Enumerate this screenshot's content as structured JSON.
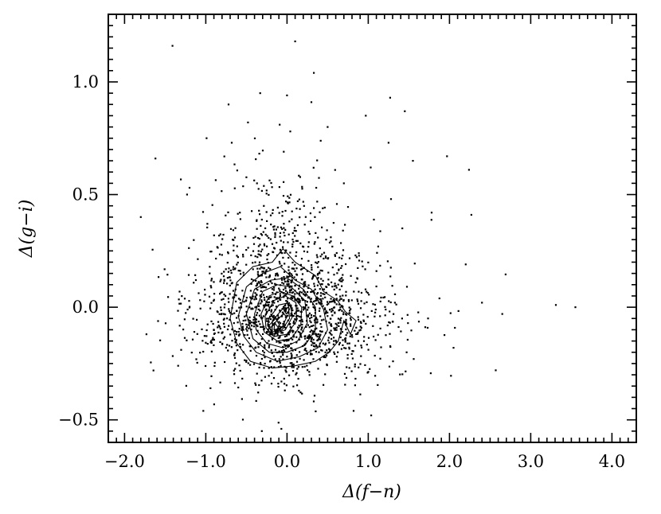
{
  "chart_data": {
    "type": "scatter",
    "title": "",
    "xlabel": "Δ(f−n)",
    "ylabel": "Δ(g−i)",
    "xlim": [
      -2.2,
      4.3
    ],
    "ylim": [
      -0.6,
      1.3
    ],
    "grid": false,
    "xticks": [
      {
        "value": -2.0,
        "label": "−2.0"
      },
      {
        "value": -1.0,
        "label": "−1.0"
      },
      {
        "value": 0.0,
        "label": "0.0"
      },
      {
        "value": 1.0,
        "label": "1.0"
      },
      {
        "value": 2.0,
        "label": "2.0"
      },
      {
        "value": 3.0,
        "label": "3.0"
      },
      {
        "value": 4.0,
        "label": "4.0"
      }
    ],
    "yticks": [
      {
        "value": -0.5,
        "label": "−0.5"
      },
      {
        "value": 0.0,
        "label": "0.0"
      },
      {
        "value": 0.5,
        "label": "0.5"
      },
      {
        "value": 1.0,
        "label": "1.0"
      }
    ],
    "points": [
      [
        -1.41,
        1.16
      ],
      [
        0.1,
        1.18
      ],
      [
        0.33,
        1.04
      ],
      [
        -0.33,
        0.95
      ],
      [
        0.0,
        0.94
      ],
      [
        -0.72,
        0.9
      ],
      [
        0.3,
        0.91
      ],
      [
        1.27,
        0.93
      ],
      [
        0.97,
        0.85
      ],
      [
        1.45,
        0.87
      ],
      [
        -0.48,
        0.82
      ],
      [
        -0.09,
        0.81
      ],
      [
        -1.62,
        0.66
      ],
      [
        -0.99,
        0.75
      ],
      [
        0.5,
        0.8
      ],
      [
        1.25,
        0.73
      ],
      [
        1.55,
        0.65
      ],
      [
        -0.68,
        0.73
      ],
      [
        1.97,
        0.67
      ],
      [
        1.03,
        0.62
      ],
      [
        2.24,
        0.61
      ],
      [
        -1.2,
        0.53
      ],
      [
        -1.8,
        0.4
      ],
      [
        2.27,
        0.41
      ],
      [
        1.78,
        0.42
      ],
      [
        -0.98,
        0.37
      ],
      [
        0.33,
        0.44
      ],
      [
        -0.37,
        0.55
      ],
      [
        0.7,
        0.55
      ],
      [
        -1.23,
        0.5
      ],
      [
        1.28,
        0.48
      ],
      [
        -0.58,
        0.42
      ],
      [
        -0.04,
        0.69
      ],
      [
        0.04,
        0.78
      ],
      [
        0.36,
        0.53
      ],
      [
        1.42,
        0.35
      ],
      [
        2.2,
        0.19
      ],
      [
        2.4,
        0.02
      ],
      [
        2.65,
        -0.03
      ],
      [
        3.31,
        0.01
      ],
      [
        3.55,
        0.0
      ],
      [
        2.05,
        -0.18
      ],
      [
        2.57,
        -0.28
      ],
      [
        1.56,
        -0.23
      ],
      [
        0.82,
        -0.46
      ],
      [
        -1.03,
        -0.46
      ],
      [
        -0.07,
        -0.54
      ],
      [
        -1.73,
        -0.12
      ],
      [
        -1.34,
        -0.26
      ],
      [
        -0.31,
        -0.55
      ]
    ],
    "contours": [
      [
        [
          -0.7,
          -0.05
        ],
        [
          -0.62,
          0.11
        ],
        [
          -0.42,
          0.18
        ],
        [
          -0.18,
          0.2
        ],
        [
          -0.05,
          0.26
        ],
        [
          0.1,
          0.2
        ],
        [
          0.35,
          0.14
        ],
        [
          0.45,
          0.07
        ],
        [
          0.62,
          0.03
        ],
        [
          0.72,
          -0.02
        ],
        [
          0.85,
          -0.06
        ],
        [
          0.78,
          -0.12
        ],
        [
          0.7,
          -0.06
        ],
        [
          0.63,
          -0.15
        ],
        [
          0.52,
          -0.2
        ],
        [
          0.35,
          -0.24
        ],
        [
          0.1,
          -0.26
        ],
        [
          -0.18,
          -0.27
        ],
        [
          -0.45,
          -0.24
        ],
        [
          -0.62,
          -0.16
        ]
      ],
      [
        [
          -0.6,
          -0.04
        ],
        [
          -0.5,
          0.09
        ],
        [
          -0.3,
          0.15
        ],
        [
          -0.08,
          0.18
        ],
        [
          0.1,
          0.12
        ],
        [
          0.3,
          0.08
        ],
        [
          0.45,
          -0.01
        ],
        [
          0.5,
          -0.1
        ],
        [
          0.38,
          -0.18
        ],
        [
          0.15,
          -0.22
        ],
        [
          -0.12,
          -0.24
        ],
        [
          -0.38,
          -0.2
        ],
        [
          -0.53,
          -0.13
        ]
      ],
      [
        [
          -0.5,
          -0.03
        ],
        [
          -0.4,
          0.08
        ],
        [
          -0.2,
          0.12
        ],
        [
          0.0,
          0.13
        ],
        [
          0.2,
          0.08
        ],
        [
          0.35,
          0.0
        ],
        [
          0.35,
          -0.1
        ],
        [
          0.22,
          -0.17
        ],
        [
          0.0,
          -0.2
        ],
        [
          -0.22,
          -0.2
        ],
        [
          -0.42,
          -0.14
        ]
      ],
      [
        [
          -0.4,
          -0.03
        ],
        [
          -0.3,
          0.07
        ],
        [
          -0.12,
          0.1
        ],
        [
          0.05,
          0.09
        ],
        [
          0.22,
          0.03
        ],
        [
          0.25,
          -0.07
        ],
        [
          0.13,
          -0.15
        ],
        [
          -0.05,
          -0.18
        ],
        [
          -0.25,
          -0.16
        ],
        [
          -0.38,
          -0.1
        ]
      ],
      [
        [
          -0.32,
          -0.03
        ],
        [
          -0.22,
          0.05
        ],
        [
          -0.08,
          0.07
        ],
        [
          0.07,
          0.05
        ],
        [
          0.18,
          0.0
        ],
        [
          0.17,
          -0.08
        ],
        [
          0.05,
          -0.14
        ],
        [
          -0.12,
          -0.15
        ],
        [
          -0.28,
          -0.11
        ]
      ],
      [
        [
          -0.27,
          -0.04
        ],
        [
          -0.16,
          0.03
        ],
        [
          -0.02,
          0.05
        ],
        [
          0.11,
          0.02
        ],
        [
          0.12,
          -0.06
        ],
        [
          0.0,
          -0.12
        ],
        [
          -0.16,
          -0.13
        ],
        [
          -0.26,
          -0.09
        ]
      ],
      [
        [
          -0.22,
          -0.05
        ],
        [
          -0.1,
          0.01
        ],
        [
          0.03,
          0.02
        ],
        [
          0.07,
          -0.04
        ],
        [
          -0.02,
          -0.1
        ],
        [
          -0.17,
          -0.12
        ],
        [
          -0.24,
          -0.08
        ]
      ],
      [
        [
          -0.18,
          -0.06
        ],
        [
          -0.06,
          -0.01
        ],
        [
          0.02,
          0.0
        ],
        [
          0.03,
          -0.05
        ],
        [
          -0.06,
          -0.1
        ],
        [
          -0.18,
          -0.11
        ]
      ],
      [
        [
          -0.15,
          -0.07
        ],
        [
          -0.05,
          -0.03
        ],
        [
          0.0,
          -0.04
        ],
        [
          -0.06,
          -0.09
        ],
        [
          -0.16,
          -0.1
        ]
      ],
      [
        [
          -0.22,
          -0.08
        ],
        [
          -0.14,
          -0.05
        ],
        [
          -0.09,
          -0.08
        ],
        [
          -0.16,
          -0.13
        ],
        [
          -0.23,
          -0.11
        ]
      ],
      [
        [
          -0.2,
          -0.09
        ],
        [
          -0.15,
          -0.07
        ],
        [
          -0.11,
          -0.09
        ],
        [
          -0.16,
          -0.12
        ],
        [
          -0.2,
          -0.11
        ]
      ],
      [
        [
          -0.05,
          0.0
        ],
        [
          0.0,
          0.02
        ],
        [
          0.03,
          -0.01
        ],
        [
          -0.01,
          -0.03
        ]
      ]
    ]
  }
}
